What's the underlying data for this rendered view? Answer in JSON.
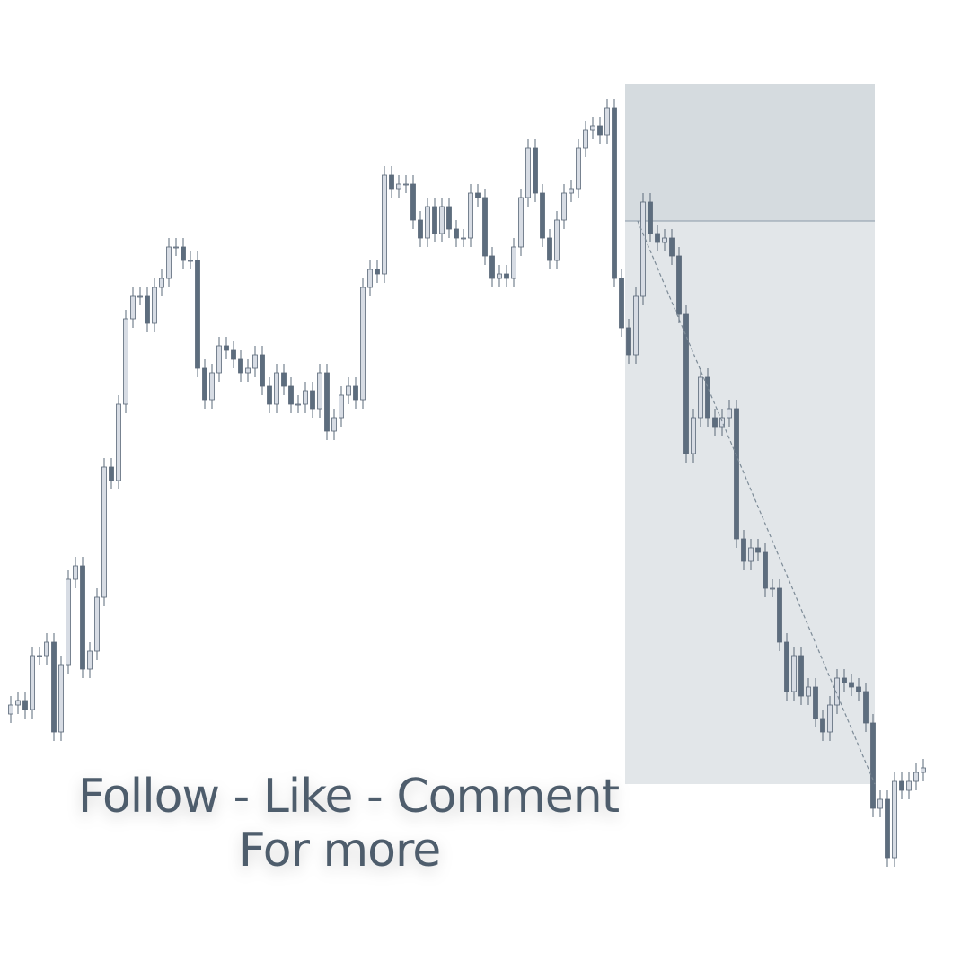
{
  "chart_data": {
    "type": "candlestick",
    "ylim": [
      0,
      1080
    ],
    "up_color": "#d7dce4",
    "down_color": "#5d6d7e",
    "wick_color": "#5a6878",
    "series": [
      {
        "open": [
          285,
          295,
          300,
          290,
          350,
          350,
          365,
          265,
          340,
          435,
          450,
          335,
          355,
          415,
          560,
          545,
          630,
          725,
          750,
          750,
          720,
          760,
          770,
          805,
          805,
          790,
          790,
          670,
          635,
          665,
          695,
          690,
          680,
          665,
          670,
          685,
          650,
          630,
          665,
          650,
          630,
          630,
          645,
          625,
          665,
          600,
          615,
          640,
          650,
          635,
          760,
          780,
          775,
          885,
          870,
          875,
          875,
          835,
          815,
          850,
          820,
          850,
          825,
          815,
          815,
          865,
          860,
          795,
          770,
          775,
          770,
          805,
          860,
          915,
          865,
          815,
          790,
          835,
          865,
          870,
          915,
          935,
          940,
          930,
          960,
          770,
          715,
          685,
          750,
          855,
          820,
          810,
          815,
          795,
          730,
          575,
          615,
          660,
          615,
          605,
          615,
          625,
          480,
          455,
          470,
          465,
          425,
          425,
          365,
          310,
          350,
          305,
          315,
          280,
          265,
          295,
          325,
          320,
          315,
          310,
          275,
          180,
          190,
          125,
          210,
          200,
          210,
          220
        ],
        "high": [
          305,
          310,
          310,
          360,
          360,
          375,
          375,
          350,
          445,
          460,
          460,
          365,
          425,
          570,
          570,
          640,
          735,
          760,
          760,
          760,
          770,
          780,
          815,
          815,
          815,
          800,
          800,
          680,
          675,
          705,
          705,
          700,
          690,
          680,
          695,
          695,
          660,
          675,
          675,
          660,
          640,
          655,
          655,
          675,
          675,
          625,
          650,
          660,
          660,
          770,
          790,
          790,
          895,
          895,
          885,
          885,
          885,
          845,
          860,
          860,
          860,
          860,
          835,
          825,
          875,
          875,
          870,
          805,
          785,
          785,
          815,
          870,
          925,
          925,
          875,
          825,
          845,
          875,
          880,
          925,
          945,
          950,
          950,
          970,
          970,
          780,
          725,
          760,
          865,
          865,
          830,
          825,
          825,
          805,
          740,
          625,
          670,
          670,
          625,
          625,
          635,
          635,
          490,
          480,
          480,
          475,
          435,
          435,
          375,
          360,
          360,
          325,
          325,
          290,
          305,
          335,
          335,
          330,
          325,
          320,
          285,
          200,
          200,
          220,
          220,
          220,
          230,
          235
        ],
        "low": [
          275,
          285,
          280,
          280,
          340,
          340,
          255,
          255,
          330,
          425,
          325,
          325,
          345,
          405,
          535,
          535,
          620,
          715,
          740,
          710,
          710,
          750,
          760,
          795,
          780,
          780,
          660,
          625,
          625,
          655,
          680,
          670,
          655,
          655,
          660,
          640,
          620,
          620,
          640,
          620,
          620,
          620,
          615,
          615,
          590,
          590,
          605,
          630,
          625,
          625,
          750,
          765,
          765,
          860,
          860,
          865,
          825,
          805,
          805,
          810,
          810,
          815,
          805,
          805,
          805,
          850,
          785,
          760,
          760,
          760,
          760,
          795,
          850,
          855,
          805,
          780,
          780,
          825,
          855,
          860,
          905,
          925,
          920,
          920,
          760,
          705,
          675,
          675,
          740,
          810,
          800,
          800,
          785,
          720,
          565,
          565,
          605,
          605,
          595,
          595,
          605,
          470,
          445,
          445,
          455,
          415,
          415,
          355,
          300,
          300,
          295,
          295,
          270,
          255,
          255,
          285,
          310,
          305,
          300,
          265,
          170,
          170,
          115,
          115,
          190,
          190,
          200,
          210
        ],
        "close": [
          295,
          300,
          290,
          350,
          350,
          365,
          265,
          340,
          435,
          450,
          335,
          355,
          415,
          560,
          545,
          630,
          725,
          750,
          750,
          720,
          760,
          770,
          805,
          805,
          790,
          790,
          670,
          635,
          665,
          695,
          690,
          680,
          665,
          670,
          685,
          650,
          630,
          665,
          650,
          630,
          630,
          645,
          625,
          665,
          600,
          615,
          640,
          650,
          635,
          760,
          780,
          775,
          885,
          870,
          875,
          875,
          835,
          815,
          850,
          820,
          850,
          825,
          815,
          815,
          865,
          860,
          795,
          770,
          775,
          770,
          805,
          860,
          915,
          865,
          815,
          790,
          835,
          865,
          870,
          915,
          935,
          940,
          930,
          960,
          770,
          715,
          685,
          750,
          855,
          820,
          810,
          815,
          795,
          730,
          575,
          615,
          660,
          615,
          605,
          615,
          625,
          480,
          455,
          470,
          465,
          425,
          425,
          365,
          310,
          350,
          305,
          315,
          280,
          265,
          295,
          325,
          320,
          315,
          310,
          275,
          180,
          190,
          125,
          210,
          200,
          210,
          220,
          225
        ]
      }
    ],
    "position": {
      "start": 86,
      "end": 120,
      "entry": 834,
      "stop": 986,
      "target": 207,
      "stop_color": "#d5dbdf",
      "target_color": "#e2e6e9"
    },
    "annotations": [
      "Follow - Like - Comment",
      "For more"
    ]
  }
}
